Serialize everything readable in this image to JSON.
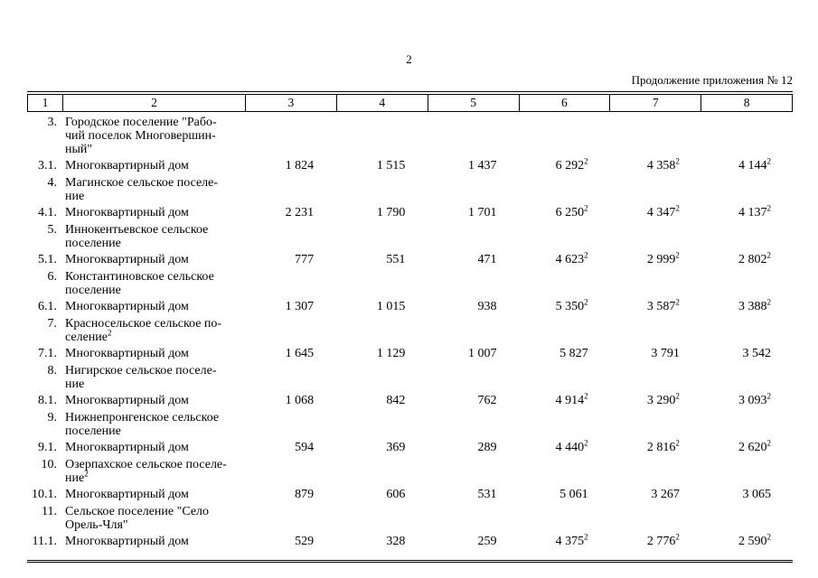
{
  "page": {
    "number": "2",
    "continuation": "Продолжение приложения № 12"
  },
  "table": {
    "columns": [
      "1",
      "2",
      "3",
      "4",
      "5",
      "6",
      "7",
      "8"
    ],
    "footnote_marker": "2",
    "rows": [
      {
        "num": "3.",
        "name": [
          "Городское поселение \"Рабо-",
          "чий поселок Многовершин-",
          "ный\""
        ],
        "values": []
      },
      {
        "num": "3.1.",
        "name": [
          "Многоквартирный дом"
        ],
        "values": [
          "1 824",
          "1 515",
          "1 437",
          "6 292^2",
          "4 358^2",
          "4 144^2"
        ]
      },
      {
        "num": "4.",
        "name": [
          "Магинское сельское поселе-",
          "ние"
        ],
        "values": []
      },
      {
        "num": "4.1.",
        "name": [
          "Многоквартирный дом"
        ],
        "values": [
          "2 231",
          "1 790",
          "1 701",
          "6 250^2",
          "4 347^2",
          "4 137^2"
        ]
      },
      {
        "num": "5.",
        "name": [
          "Иннокентьевское сельское",
          "поселение"
        ],
        "values": []
      },
      {
        "num": "5.1.",
        "name": [
          "Многоквартирный дом"
        ],
        "values": [
          "777",
          "551",
          "471",
          "4 623^2",
          "2 999^2",
          "2 802^2"
        ]
      },
      {
        "num": "6.",
        "name": [
          "Константиновское сельское",
          "поселение"
        ],
        "values": []
      },
      {
        "num": "6.1.",
        "name": [
          "Многоквартирный дом"
        ],
        "values": [
          "1 307",
          "1 015",
          "938",
          "5 350^2",
          "3 587^2",
          "3 388^2"
        ]
      },
      {
        "num": "7.",
        "name": [
          "Красносельское сельское по-",
          "селение^2"
        ],
        "values": []
      },
      {
        "num": "7.1.",
        "name": [
          "Многоквартирный дом"
        ],
        "values": [
          "1 645",
          "1 129",
          "1 007",
          "5 827",
          "3 791",
          "3 542"
        ]
      },
      {
        "num": "8.",
        "name": [
          "Нигирское сельское поселе-",
          "ние"
        ],
        "values": []
      },
      {
        "num": "8.1.",
        "name": [
          "Многоквартирный дом"
        ],
        "values": [
          "1 068",
          "842",
          "762",
          "4 914^2",
          "3 290^2",
          "3 093^2"
        ]
      },
      {
        "num": "9.",
        "name": [
          "Нижнепронгенское сельское",
          "поселение"
        ],
        "values": []
      },
      {
        "num": "9.1.",
        "name": [
          "Многоквартирный дом"
        ],
        "values": [
          "594",
          "369",
          "289",
          "4 440^2",
          "2 816^2",
          "2 620^2"
        ]
      },
      {
        "num": "10.",
        "name": [
          "Озерпахское сельское поселе-",
          "ние^2"
        ],
        "values": []
      },
      {
        "num": "10.1.",
        "name": [
          "Многоквартирный дом"
        ],
        "values": [
          "879",
          "606",
          "531",
          "5 061",
          "3 267",
          "3 065"
        ]
      },
      {
        "num": "11.",
        "name": [
          "Сельское поселение \"Село",
          "Орель-Чля\""
        ],
        "values": []
      },
      {
        "num": "11.1.",
        "name": [
          "Многоквартирный дом"
        ],
        "values": [
          "529",
          "328",
          "259",
          "4 375^2",
          "2 776^2",
          "2 590^2"
        ]
      }
    ]
  }
}
